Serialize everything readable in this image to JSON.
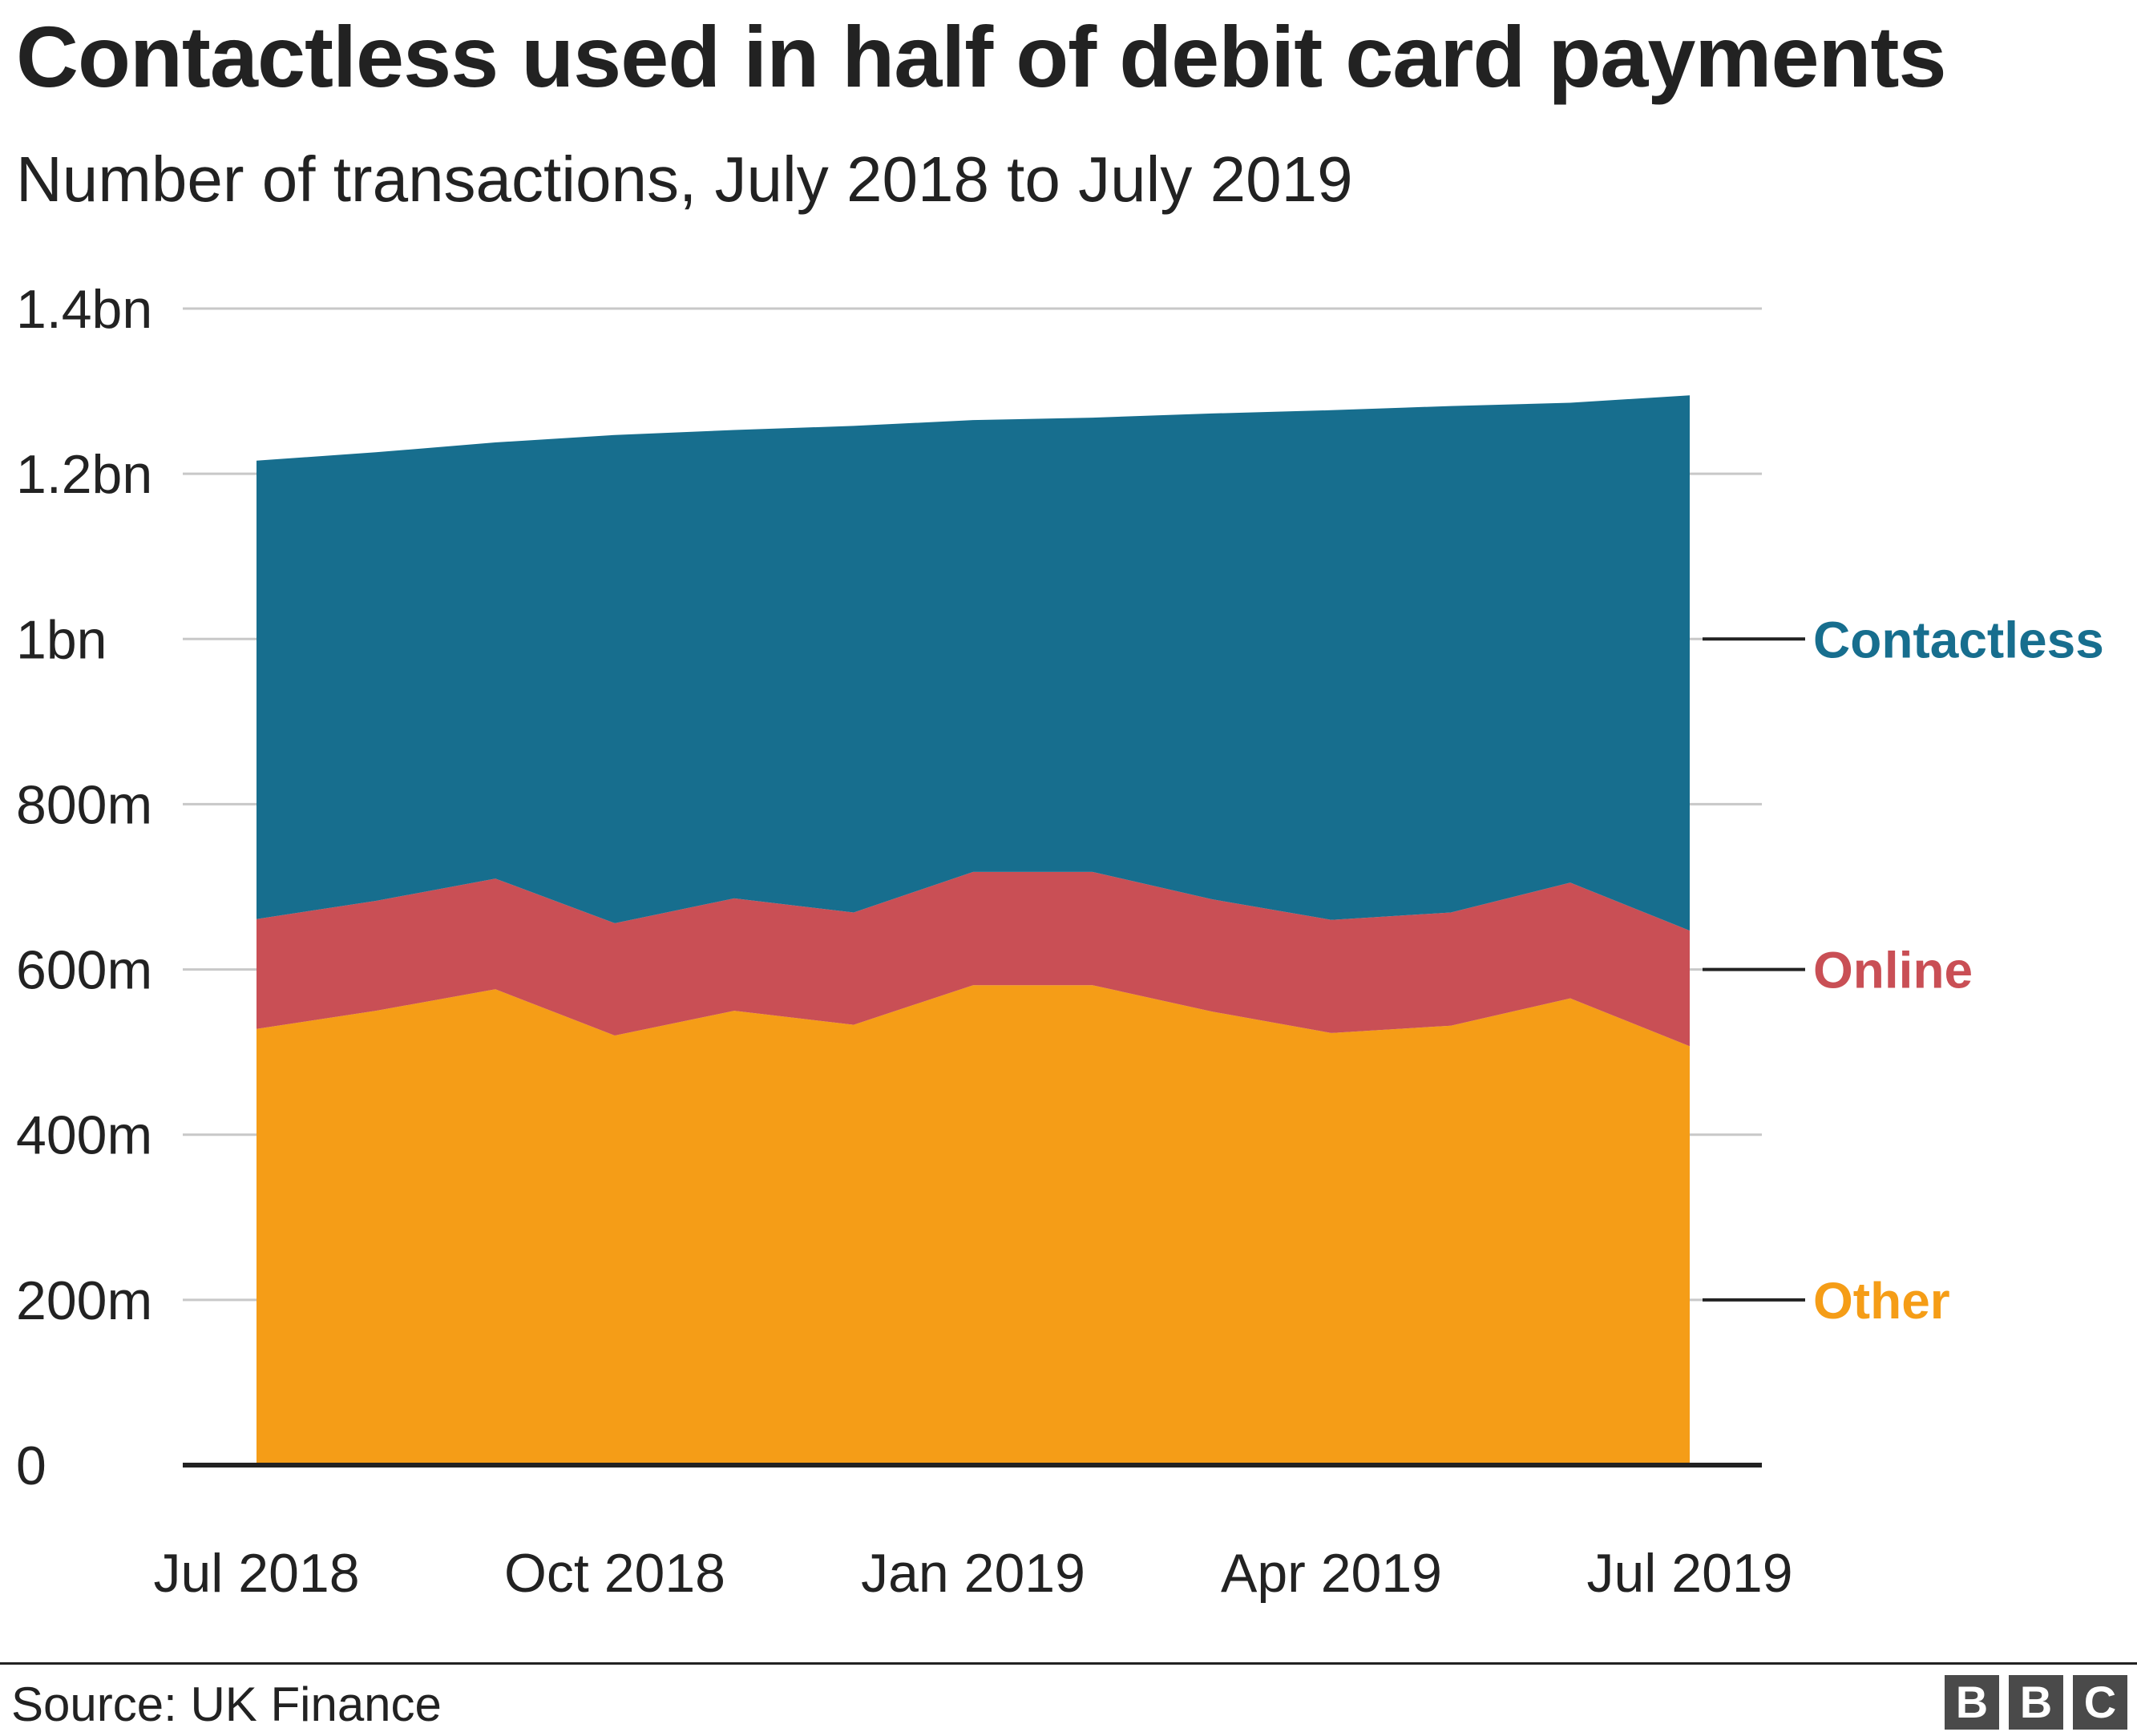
{
  "header": {
    "title": "Contactless used in half of debit card payments",
    "subtitle": "Number of transactions, July 2018 to July 2019"
  },
  "chart_data": {
    "type": "area",
    "stacked": true,
    "title": "Contactless used in half of debit card payments",
    "subtitle": "Number of transactions, July 2018 to July 2019",
    "xlabel": "",
    "ylabel": "",
    "x": [
      "2018-07",
      "2018-08",
      "2018-09",
      "2018-10",
      "2018-11",
      "2018-12",
      "2019-01",
      "2019-02",
      "2019-03",
      "2019-04",
      "2019-05",
      "2019-06",
      "2019-07"
    ],
    "x_tick_labels": [
      {
        "x": "2018-07",
        "label": "Jul 2018"
      },
      {
        "x": "2018-10",
        "label": "Oct 2018"
      },
      {
        "x": "2019-01",
        "label": "Jan 2019"
      },
      {
        "x": "2019-04",
        "label": "Apr 2019"
      },
      {
        "x": "2019-07",
        "label": "Jul 2019"
      }
    ],
    "y_ticks": [
      {
        "value": 0,
        "label": "0"
      },
      {
        "value": 200000000,
        "label": "200m"
      },
      {
        "value": 400000000,
        "label": "400m"
      },
      {
        "value": 600000000,
        "label": "600m"
      },
      {
        "value": 800000000,
        "label": "800m"
      },
      {
        "value": 1000000000,
        "label": "1bn"
      },
      {
        "value": 1200000000,
        "label": "1.2bn"
      },
      {
        "value": 1400000000,
        "label": "1.4bn"
      }
    ],
    "ylim": [
      0,
      1400000000
    ],
    "grid": true,
    "legend": "direct labels at right",
    "series": [
      {
        "name": "Other",
        "color": "#f59d17",
        "values": [
          528000000,
          550000000,
          576000000,
          520000000,
          550000000,
          533000000,
          581000000,
          581000000,
          549000000,
          523000000,
          532000000,
          565000000,
          507000000
        ]
      },
      {
        "name": "Online",
        "color": "#c94f55",
        "values": [
          133000000,
          133000000,
          134000000,
          136000000,
          136000000,
          136000000,
          137000000,
          137000000,
          136000000,
          137000000,
          137000000,
          140000000,
          140000000
        ]
      },
      {
        "name": "Contactless",
        "color": "#176e8e",
        "values": [
          555000000,
          543000000,
          528000000,
          591000000,
          567000000,
          589000000,
          547000000,
          550000000,
          588000000,
          617000000,
          613000000,
          581000000,
          648000000
        ]
      }
    ]
  },
  "footer": {
    "source": "Source: UK Finance",
    "logo_letters": [
      "B",
      "B",
      "C"
    ]
  }
}
